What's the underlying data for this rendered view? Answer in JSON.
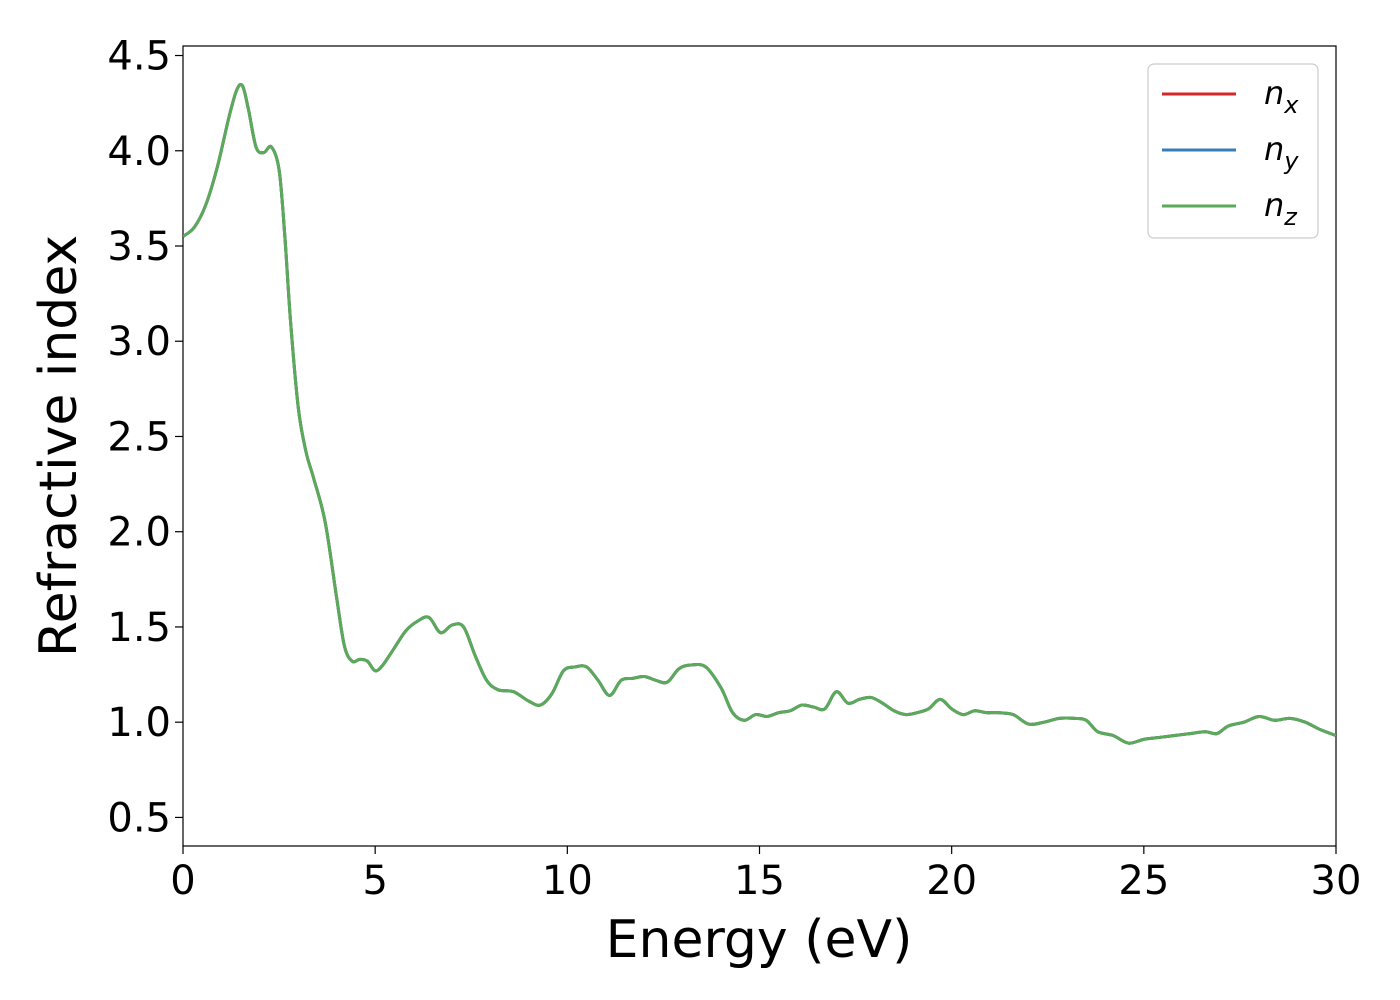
{
  "chart_data": {
    "type": "line",
    "xlabel": "Energy (eV)",
    "ylabel": "Refractive index",
    "xlim": [
      0,
      30
    ],
    "ylim": [
      0.35,
      4.55
    ],
    "xticks": [
      "0",
      "5",
      "10",
      "15",
      "20",
      "25",
      "30"
    ],
    "yticks": [
      "0.5",
      "1.0",
      "1.5",
      "2.0",
      "2.5",
      "3.0",
      "3.5",
      "4.0",
      "4.5"
    ],
    "grid": false,
    "legend_position": "top-right",
    "x": [
      0,
      0.3,
      0.6,
      0.9,
      1.2,
      1.4,
      1.55,
      1.7,
      1.9,
      2.1,
      2.3,
      2.5,
      2.65,
      2.8,
      3.0,
      3.2,
      3.4,
      3.7,
      4.0,
      4.2,
      4.4,
      4.6,
      4.8,
      5.0,
      5.2,
      5.5,
      5.8,
      6.1,
      6.4,
      6.7,
      7.0,
      7.3,
      7.6,
      7.9,
      8.2,
      8.6,
      9.0,
      9.3,
      9.6,
      9.9,
      10.2,
      10.5,
      10.8,
      11.1,
      11.4,
      11.7,
      12.0,
      12.3,
      12.6,
      12.9,
      13.2,
      13.6,
      14.0,
      14.3,
      14.6,
      14.9,
      15.2,
      15.5,
      15.8,
      16.1,
      16.4,
      16.7,
      17.0,
      17.3,
      17.6,
      17.9,
      18.2,
      18.5,
      18.8,
      19.1,
      19.4,
      19.7,
      20.0,
      20.3,
      20.6,
      20.9,
      21.2,
      21.6,
      22.0,
      22.4,
      22.8,
      23.2,
      23.5,
      23.8,
      24.2,
      24.6,
      25.0,
      25.4,
      25.8,
      26.2,
      26.6,
      26.9,
      27.2,
      27.6,
      28.0,
      28.4,
      28.8,
      29.2,
      29.6,
      30.0
    ],
    "series": [
      {
        "name": "n_x",
        "label_base": "n",
        "label_sub": "x",
        "color": "#d62728",
        "values": [
          3.55,
          3.6,
          3.72,
          3.92,
          4.18,
          4.32,
          4.34,
          4.22,
          4.02,
          3.99,
          4.02,
          3.9,
          3.55,
          3.1,
          2.65,
          2.42,
          2.28,
          2.05,
          1.65,
          1.4,
          1.32,
          1.33,
          1.32,
          1.27,
          1.3,
          1.39,
          1.48,
          1.53,
          1.55,
          1.47,
          1.51,
          1.5,
          1.35,
          1.22,
          1.17,
          1.16,
          1.11,
          1.09,
          1.15,
          1.27,
          1.29,
          1.29,
          1.22,
          1.14,
          1.22,
          1.23,
          1.24,
          1.22,
          1.21,
          1.28,
          1.3,
          1.29,
          1.18,
          1.05,
          1.01,
          1.04,
          1.03,
          1.05,
          1.06,
          1.09,
          1.08,
          1.07,
          1.16,
          1.1,
          1.12,
          1.13,
          1.1,
          1.06,
          1.04,
          1.05,
          1.07,
          1.12,
          1.07,
          1.04,
          1.06,
          1.05,
          1.05,
          1.04,
          0.99,
          1.0,
          1.02,
          1.02,
          1.01,
          0.95,
          0.93,
          0.89,
          0.91,
          0.92,
          0.93,
          0.94,
          0.95,
          0.94,
          0.98,
          1.0,
          1.03,
          1.01,
          1.02,
          1.0,
          0.96,
          0.93
        ]
      },
      {
        "name": "n_y",
        "label_base": "n",
        "label_sub": "y",
        "color": "#377eb8",
        "values": [
          3.55,
          3.6,
          3.72,
          3.92,
          4.18,
          4.32,
          4.34,
          4.22,
          4.02,
          3.99,
          4.02,
          3.9,
          3.55,
          3.1,
          2.65,
          2.42,
          2.28,
          2.05,
          1.65,
          1.4,
          1.32,
          1.33,
          1.32,
          1.27,
          1.3,
          1.39,
          1.48,
          1.53,
          1.55,
          1.47,
          1.51,
          1.5,
          1.35,
          1.22,
          1.17,
          1.16,
          1.11,
          1.09,
          1.15,
          1.27,
          1.29,
          1.29,
          1.22,
          1.14,
          1.22,
          1.23,
          1.24,
          1.22,
          1.21,
          1.28,
          1.3,
          1.29,
          1.18,
          1.05,
          1.01,
          1.04,
          1.03,
          1.05,
          1.06,
          1.09,
          1.08,
          1.07,
          1.16,
          1.1,
          1.12,
          1.13,
          1.1,
          1.06,
          1.04,
          1.05,
          1.07,
          1.12,
          1.07,
          1.04,
          1.06,
          1.05,
          1.05,
          1.04,
          0.99,
          1.0,
          1.02,
          1.02,
          1.01,
          0.95,
          0.93,
          0.89,
          0.91,
          0.92,
          0.93,
          0.94,
          0.95,
          0.94,
          0.98,
          1.0,
          1.03,
          1.01,
          1.02,
          1.0,
          0.96,
          0.93
        ]
      },
      {
        "name": "n_z",
        "label_base": "n",
        "label_sub": "z",
        "color": "#5aaa5a",
        "values": [
          3.55,
          3.6,
          3.72,
          3.92,
          4.18,
          4.32,
          4.34,
          4.22,
          4.02,
          3.99,
          4.02,
          3.9,
          3.55,
          3.1,
          2.65,
          2.42,
          2.28,
          2.05,
          1.65,
          1.4,
          1.32,
          1.33,
          1.32,
          1.27,
          1.3,
          1.39,
          1.48,
          1.53,
          1.55,
          1.47,
          1.51,
          1.5,
          1.35,
          1.22,
          1.17,
          1.16,
          1.11,
          1.09,
          1.15,
          1.27,
          1.29,
          1.29,
          1.22,
          1.14,
          1.22,
          1.23,
          1.24,
          1.22,
          1.21,
          1.28,
          1.3,
          1.29,
          1.18,
          1.05,
          1.01,
          1.04,
          1.03,
          1.05,
          1.06,
          1.09,
          1.08,
          1.07,
          1.16,
          1.1,
          1.12,
          1.13,
          1.1,
          1.06,
          1.04,
          1.05,
          1.07,
          1.12,
          1.07,
          1.04,
          1.06,
          1.05,
          1.05,
          1.04,
          0.99,
          1.0,
          1.02,
          1.02,
          1.01,
          0.95,
          0.93,
          0.89,
          0.91,
          0.92,
          0.93,
          0.94,
          0.95,
          0.94,
          0.98,
          1.0,
          1.03,
          1.01,
          1.02,
          1.0,
          0.96,
          0.93
        ]
      }
    ]
  }
}
